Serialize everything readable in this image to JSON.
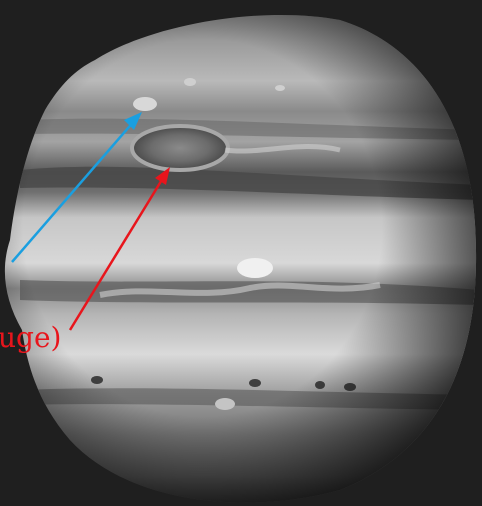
{
  "annotation_label": "uge)",
  "colors": {
    "background": "#1f1f1f",
    "blue_arrow": "#1a9fe0",
    "red_arrow": "#e8151c",
    "label": "#e8151c"
  },
  "arrows": [
    {
      "name": "blue-arrow",
      "color": "#1a9fe0"
    },
    {
      "name": "red-arrow",
      "color": "#e8151c"
    }
  ]
}
